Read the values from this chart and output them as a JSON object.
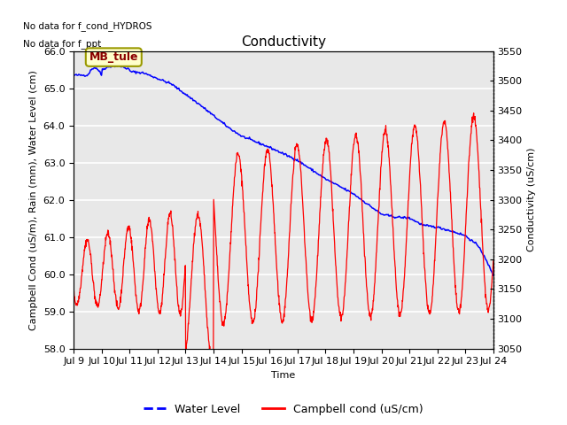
{
  "title": "Conductivity",
  "xlabel": "Time",
  "ylabel_left": "Campbell Cond (uS/m), Rain (mm), Water Level (cm)",
  "ylabel_right": "Conductivity (uS/cm)",
  "ylim_left": [
    58.0,
    66.0
  ],
  "ylim_right": [
    3050,
    3550
  ],
  "yticks_left": [
    58.0,
    59.0,
    60.0,
    61.0,
    62.0,
    63.0,
    64.0,
    65.0,
    66.0
  ],
  "yticks_right": [
    3050,
    3100,
    3150,
    3200,
    3250,
    3300,
    3350,
    3400,
    3450,
    3500,
    3550
  ],
  "xtick_labels": [
    "Jul 9",
    "Jul 10",
    "Jul 11",
    "Jul 12",
    "Jul 13",
    "Jul 14",
    "Jul 15",
    "Jul 16",
    "Jul 17",
    "Jul 18",
    "Jul 19",
    "Jul 20",
    "Jul 21",
    "Jul 22",
    "Jul 23",
    "Jul 24"
  ],
  "no_data_text1": "No data for f_cond_HYDROS",
  "no_data_text2": "No data for f_ppt",
  "legend_label_box": "MB_tule",
  "legend_entries": [
    "Water Level",
    "Campbell cond (uS/cm)"
  ],
  "bg_color": "#e8e8e8",
  "title_fontsize": 11,
  "label_fontsize": 8,
  "tick_fontsize": 8
}
